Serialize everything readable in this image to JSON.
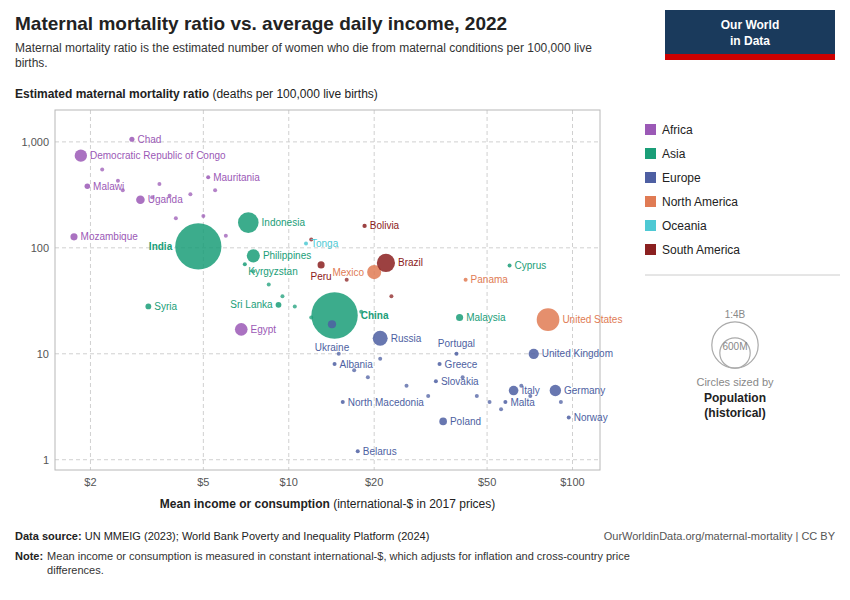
{
  "chart_data": {
    "type": "scatter",
    "title": "Maternal mortality ratio vs. average daily income, 2022",
    "subtitle": "Maternal mortality ratio is the estimated number of women who die from maternal conditions per 100,000 live\nbirths.",
    "ylabel_bold": "Estimated maternal mortality ratio",
    "ylabel_normal": " (deaths per 100,000 live births)",
    "xlabel_bold": "Mean income or consumption",
    "xlabel_normal": " (international-$ in 2017 prices)",
    "log": true,
    "grid": true,
    "xlim": [
      1.5,
      125
    ],
    "ylim": [
      0.8,
      2000
    ],
    "xticks": [
      {
        "value": 2,
        "label": "$2"
      },
      {
        "value": 5,
        "label": "$5"
      },
      {
        "value": 10,
        "label": "$10"
      },
      {
        "value": 20,
        "label": "$20"
      },
      {
        "value": 50,
        "label": "$50"
      },
      {
        "value": 100,
        "label": "$100"
      }
    ],
    "yticks": [
      1,
      10,
      100,
      {
        "value": 1000,
        "label": "1,000"
      }
    ],
    "series": [
      {
        "name": "Africa",
        "color": "#9B59B6",
        "x": [
          1.85,
          1.95,
          1.75,
          2.8,
          3.0,
          5.2,
          6.8,
          2.2,
          2.5,
          2.6,
          3.3,
          3.5,
          3.8,
          4.5,
          5.5,
          4.0,
          5.0,
          6.0
        ],
        "values": [
          741,
          381,
          127,
          1060,
          284,
          465,
          17,
          550,
          430,
          350,
          300,
          400,
          310,
          320,
          350,
          190,
          200,
          130
        ],
        "size": [
          99,
          20,
          33,
          17,
          48,
          5,
          104,
          3,
          3,
          3,
          3,
          3,
          3,
          3,
          3,
          3,
          3,
          3
        ],
        "labels": [
          "Democratic Republic of Congo",
          "Malawi",
          "Mozambique",
          "Chad",
          "Uganda",
          "Mauritania",
          "Egypt",
          null,
          null,
          null,
          null,
          null,
          null,
          null,
          null,
          null,
          null,
          null
        ]
      },
      {
        "name": "Asia",
        "color": "#1a9e78",
        "x": [
          4.8,
          7.2,
          7.5,
          7.0,
          3.2,
          9.2,
          14.5,
          40,
          60,
          7.5,
          8.5,
          9.5,
          10.5,
          12.0,
          18
        ],
        "values": [
          103,
          173,
          84,
          70,
          28,
          29,
          23,
          22,
          68,
          60,
          45,
          35,
          28,
          22,
          25
        ],
        "size": [
          1390,
          276,
          112,
          7,
          22,
          22,
          1400,
          33,
          1.2,
          3,
          3,
          3,
          3,
          3,
          3
        ],
        "labels": [
          "India",
          "Indonesia",
          "Philippines",
          "Kyrgyzstan",
          "Syria",
          "Sri Lanka",
          "China",
          "Malaysia",
          "Cyprus",
          null,
          null,
          null,
          null,
          null,
          null
        ]
      },
      {
        "name": "Europe",
        "color": "#4e5fa2",
        "x": [
          14.5,
          14.2,
          21,
          15.5,
          17.5,
          34,
          33,
          35,
          39,
          62,
          58,
          73,
          87,
          97,
          15,
          17,
          19,
          21,
          26,
          31,
          41,
          46,
          51,
          56,
          66,
          71,
          91
        ],
        "values": [
          8,
          19,
          14,
          3.5,
          1.2,
          8,
          5.5,
          2.3,
          10,
          4.5,
          3.5,
          10,
          4.5,
          2.5,
          10,
          7,
          6,
          9,
          5,
          4,
          6,
          4,
          3.5,
          3,
          5,
          4,
          3.5
        ],
        "size": [
          2.8,
          44,
          145,
          2,
          9.5,
          11,
          5.5,
          38,
          10,
          60,
          0.5,
          68,
          84,
          5.4,
          3,
          3,
          3,
          3,
          3,
          3,
          3,
          3,
          3,
          3,
          3,
          3,
          3
        ],
        "labels": [
          "Albania",
          "Ukraine",
          "Russia",
          "North Macedonia",
          "Belarus",
          "Greece",
          "Slovakia",
          "Poland",
          "Portugal",
          "Italy",
          "Malta",
          "United Kingdom",
          "Germany",
          "Norway",
          null,
          null,
          null,
          null,
          null,
          null,
          null,
          null,
          null,
          null,
          null,
          null,
          null
        ]
      },
      {
        "name": "North America",
        "color": "#e07b54",
        "x": [
          20,
          42,
          82
        ],
        "values": [
          59,
          50,
          21
        ],
        "size": [
          130,
          4.4,
          335
        ],
        "labels": [
          "Mexico",
          "Panama",
          "United States"
        ]
      },
      {
        "name": "Oceania",
        "color": "#4ec9d4",
        "x": [
          11.5
        ],
        "values": [
          110
        ],
        "size": [
          0.1
        ],
        "labels": [
          "Tonga"
        ]
      },
      {
        "name": "South America",
        "color": "#8B2020",
        "x": [
          13.0,
          18.5,
          22,
          12,
          16,
          23
        ],
        "values": [
          69,
          161,
          72,
          120,
          50,
          35
        ],
        "size": [
          33,
          12,
          215,
          3,
          3,
          3
        ],
        "labels": [
          "Peru",
          "Bolivia",
          "Brazil",
          null,
          null,
          null
        ]
      }
    ],
    "size_legend": {
      "caption": "Circles sized by",
      "heading": [
        "Population",
        "(historical)"
      ],
      "values": [
        1400,
        600
      ],
      "value_labels": [
        "1:4B",
        "600M"
      ]
    },
    "logo": [
      "Our World",
      "in Data"
    ],
    "footer": {
      "source_label": "Data source:",
      "source": " UN MMEIG (2023); World Bank Poverty and Inequality Platform (2024)",
      "url": "OurWorldinData.org/maternal-mortality | CC BY",
      "note_label": "Note:",
      "note": "Mean income or consumption is measured in constant international-$, which adjusts for inflation and cross-country price\ndifferences."
    }
  }
}
